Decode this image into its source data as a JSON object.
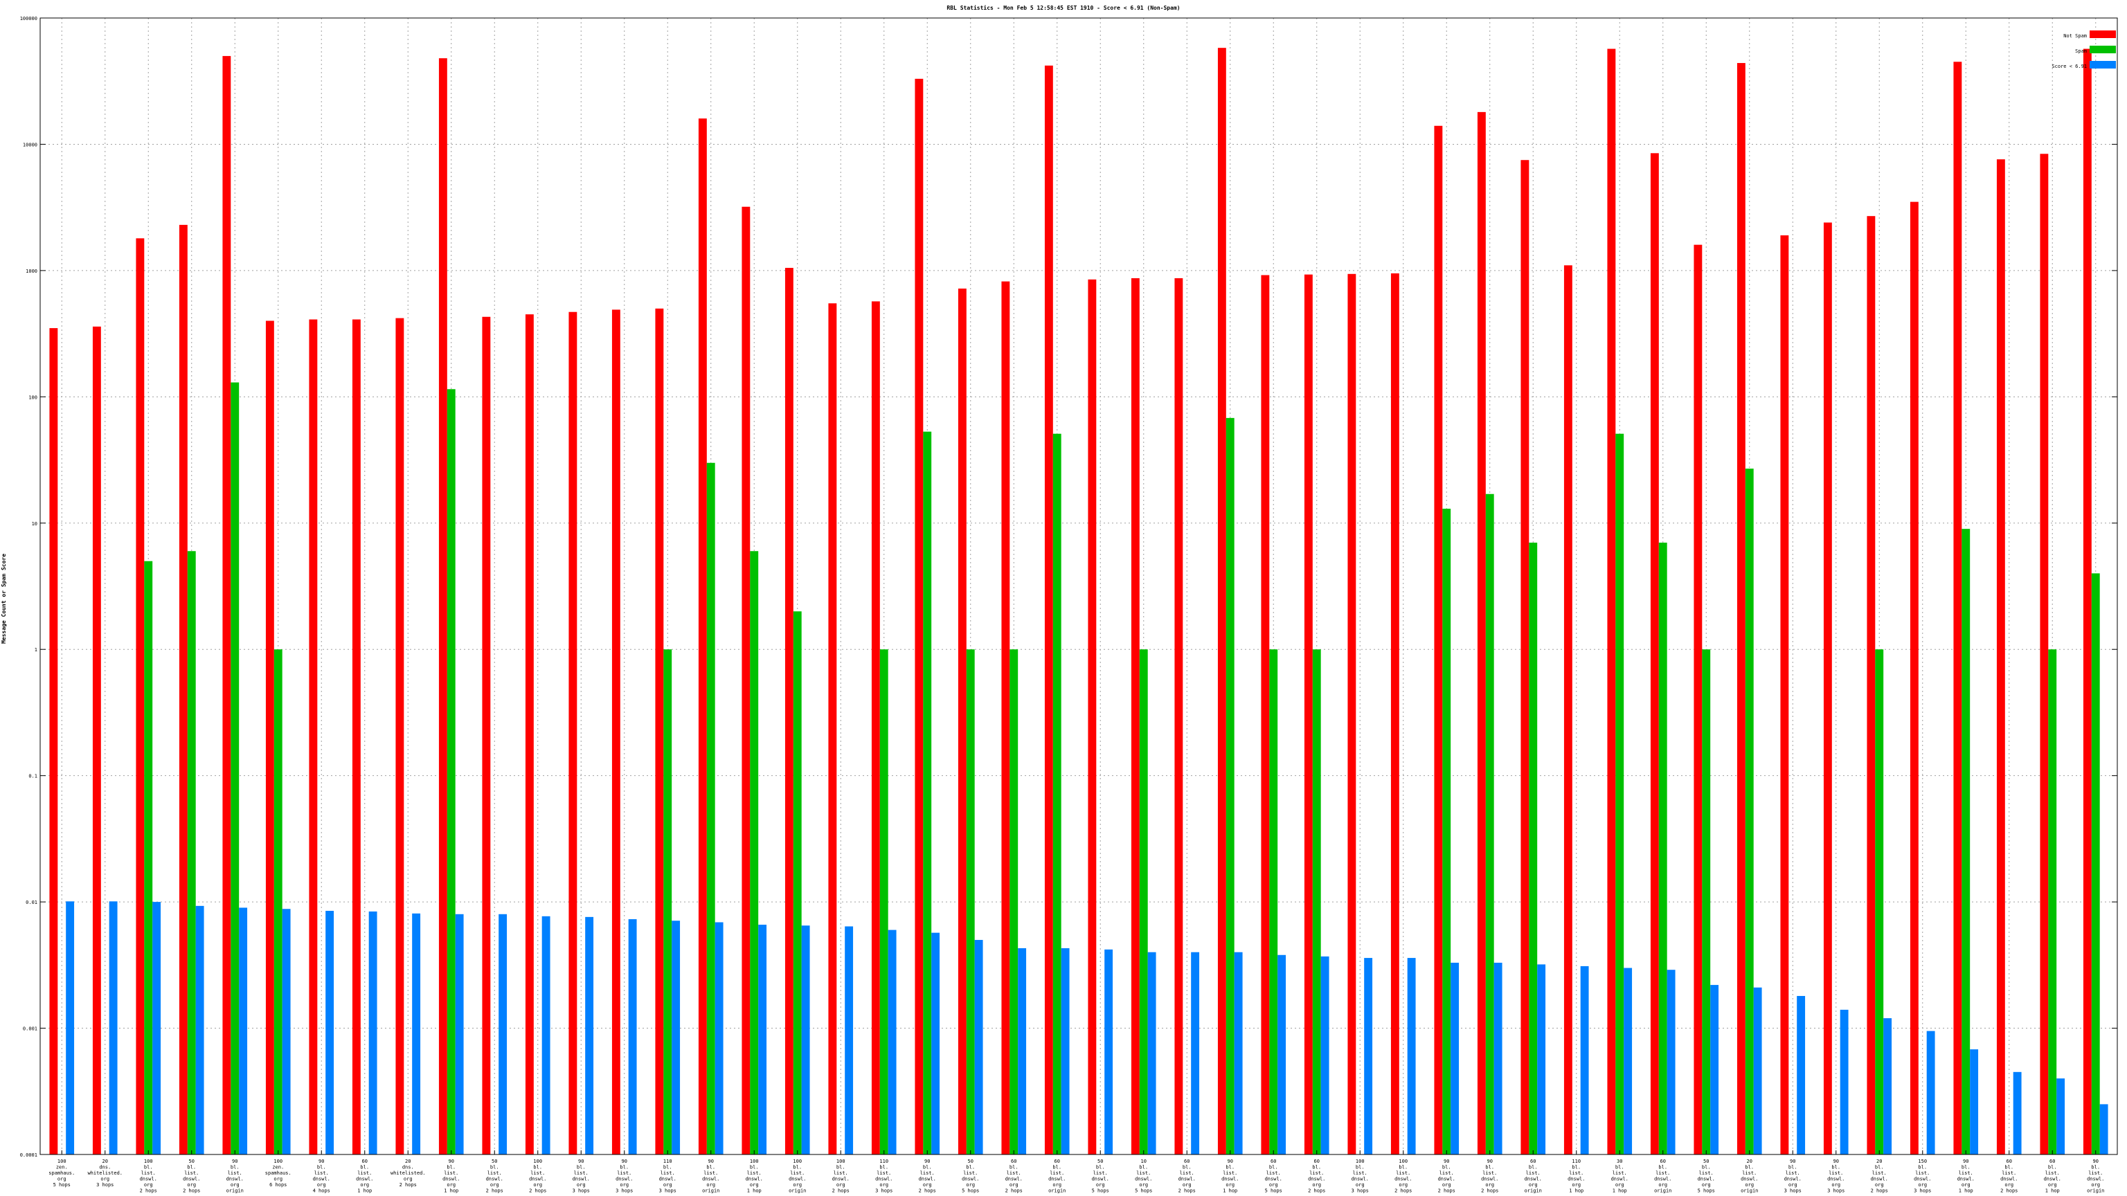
{
  "colors": {
    "not_spam": "#ff0000",
    "spam": "#00c000",
    "score": "#0080ff",
    "grid": "#a0a0a0",
    "axis": "#000000"
  },
  "chart_data": {
    "type": "bar",
    "title": "RBL Statistics - Mon Feb  5 12:58:45 EST 1910 - Score < 6.91 (Non-Spam)",
    "xlabel": "",
    "ylabel": "Message Count or Spam Score",
    "yscale": "log",
    "ylim": [
      0.0001,
      100000
    ],
    "ytick_values": [
      0.0001,
      0.001,
      0.01,
      0.1,
      1,
      10,
      100,
      1000,
      10000,
      100000
    ],
    "ytick_labels": [
      "0.0001",
      "0.001",
      "0.01",
      "0.1",
      "1",
      "10",
      "100",
      "1000",
      "10000",
      "100000"
    ],
    "grid": true,
    "legend_position": "top-right",
    "categories": [
      [
        "100",
        "zen.",
        "spamhaus.",
        "org",
        "5 hops"
      ],
      [
        "20",
        "dns.",
        "whitelisted.",
        "org",
        "3 hops"
      ],
      [
        "100",
        "bl.",
        "list.",
        "dnswl.",
        "org",
        "2 hops"
      ],
      [
        "50",
        "bl.",
        "list.",
        "dnswl.",
        "org",
        "2 hops"
      ],
      [
        "90",
        "bl.",
        "list.",
        "dnswl.",
        "org",
        "origin"
      ],
      [
        "100",
        "zen.",
        "spamhaus.",
        "org",
        "6 hops"
      ],
      [
        "90",
        "bl.",
        "list.",
        "dnswl.",
        "org",
        "4 hops"
      ],
      [
        "60",
        "bl.",
        "list.",
        "dnswl.",
        "org",
        "1 hop"
      ],
      [
        "20",
        "dns.",
        "whitelisted.",
        "org",
        "2 hops"
      ],
      [
        "90",
        "bl.",
        "list.",
        "dnswl.",
        "org",
        "1 hop"
      ],
      [
        "50",
        "bl.",
        "list.",
        "dnswl.",
        "org",
        "2 hops"
      ],
      [
        "100",
        "bl.",
        "list.",
        "dnswl.",
        "org",
        "2 hops"
      ],
      [
        "90",
        "bl.",
        "list.",
        "dnswl.",
        "org",
        "3 hops"
      ],
      [
        "90",
        "bl.",
        "list.",
        "dnswl.",
        "org",
        "3 hops"
      ],
      [
        "110",
        "bl.",
        "list.",
        "dnswl.",
        "org",
        "3 hops"
      ],
      [
        "90",
        "bl.",
        "list.",
        "dnswl.",
        "org",
        "origin"
      ],
      [
        "100",
        "bl.",
        "list.",
        "dnswl.",
        "org",
        "1 hop"
      ],
      [
        "100",
        "bl.",
        "list.",
        "dnswl.",
        "org",
        "origin"
      ],
      [
        "100",
        "bl.",
        "list.",
        "dnswl.",
        "org",
        "2 hops"
      ],
      [
        "110",
        "bl.",
        "list.",
        "dnswl.",
        "org",
        "3 hops"
      ],
      [
        "90",
        "bl.",
        "list.",
        "dnswl.",
        "org",
        "2 hops"
      ],
      [
        "50",
        "bl.",
        "list.",
        "dnswl.",
        "org",
        "5 hops"
      ],
      [
        "60",
        "bl.",
        "list.",
        "dnswl.",
        "org",
        "2 hops"
      ],
      [
        "60",
        "bl.",
        "list.",
        "dnswl.",
        "org",
        "origin"
      ],
      [
        "50",
        "bl.",
        "list.",
        "dnswl.",
        "org",
        "5 hops"
      ],
      [
        "10",
        "bl.",
        "list.",
        "dnswl.",
        "org",
        "5 hops"
      ],
      [
        "60",
        "bl.",
        "list.",
        "dnswl.",
        "org",
        "2 hops"
      ],
      [
        "90",
        "bl.",
        "list.",
        "dnswl.",
        "org",
        "1 hop"
      ],
      [
        "60",
        "bl.",
        "list.",
        "dnswl.",
        "org",
        "5 hops"
      ],
      [
        "60",
        "bl.",
        "list.",
        "dnswl.",
        "org",
        "2 hops"
      ],
      [
        "100",
        "bl.",
        "list.",
        "dnswl.",
        "org",
        "3 hops"
      ],
      [
        "100",
        "bl.",
        "list.",
        "dnswl.",
        "org",
        "2 hops"
      ],
      [
        "90",
        "bl.",
        "list.",
        "dnswl.",
        "org",
        "2 hops"
      ],
      [
        "90",
        "bl.",
        "list.",
        "dnswl.",
        "org",
        "2 hops"
      ],
      [
        "60",
        "bl.",
        "list.",
        "dnswl.",
        "org",
        "origin"
      ],
      [
        "110",
        "bl.",
        "list.",
        "dnswl.",
        "org",
        "1 hop"
      ],
      [
        "30",
        "bl.",
        "list.",
        "dnswl.",
        "org",
        "1 hop"
      ],
      [
        "60",
        "bl.",
        "list.",
        "dnswl.",
        "org",
        "origin"
      ],
      [
        "50",
        "bl.",
        "list.",
        "dnswl.",
        "org",
        "5 hops"
      ],
      [
        "20",
        "bl.",
        "list.",
        "dnswl.",
        "org",
        "origin"
      ],
      [
        "90",
        "bl.",
        "list.",
        "dnswl.",
        "org",
        "3 hops"
      ],
      [
        "90",
        "bl.",
        "list.",
        "dnswl.",
        "org",
        "3 hops"
      ],
      [
        "20",
        "bl.",
        "list.",
        "dnswl.",
        "org",
        "2 hops"
      ],
      [
        "150",
        "bl.",
        "list.",
        "dnswl.",
        "org",
        "3 hops"
      ],
      [
        "90",
        "bl.",
        "list.",
        "dnswl.",
        "org",
        "1 hop"
      ],
      [
        "60",
        "bl.",
        "list.",
        "dnswl.",
        "org",
        "2 hops"
      ],
      [
        "60",
        "bl.",
        "list.",
        "dnswl.",
        "org",
        "1 hop"
      ],
      [
        "90",
        "bl.",
        "list.",
        "dnswl.",
        "org",
        "origin"
      ]
    ],
    "series": [
      {
        "name": "Not Spam",
        "color": "#ff0000",
        "values": [
          350,
          360,
          1800,
          2300,
          50000,
          400,
          410,
          410,
          420,
          48000,
          430,
          450,
          470,
          490,
          500,
          16000,
          3200,
          1050,
          550,
          570,
          33000,
          720,
          820,
          42000,
          850,
          870,
          870,
          58000,
          920,
          930,
          940,
          950,
          14000,
          18000,
          7500,
          1100,
          57000,
          8500,
          1600,
          44000,
          1900,
          2400,
          2700,
          3500,
          45000,
          7600,
          8400,
          57000
        ]
      },
      {
        "name": "Spam",
        "color": "#00c000",
        "values": [
          null,
          null,
          5,
          6,
          130,
          1,
          null,
          null,
          null,
          115,
          null,
          null,
          null,
          null,
          1,
          30,
          6,
          2,
          null,
          1,
          53,
          1,
          1,
          51,
          null,
          1,
          null,
          68,
          1,
          1,
          null,
          null,
          13,
          17,
          7,
          null,
          51,
          7,
          1,
          27,
          null,
          null,
          1,
          null,
          9,
          null,
          1,
          4
        ]
      },
      {
        "name": "Score < 6.91",
        "color": "#0080ff",
        "values": [
          0.0101,
          0.0101,
          0.01,
          0.0093,
          0.009,
          0.0088,
          0.0085,
          0.0084,
          0.0081,
          0.008,
          0.008,
          0.0077,
          0.0076,
          0.0073,
          0.0071,
          0.0069,
          0.0066,
          0.0065,
          0.0064,
          0.006,
          0.0057,
          0.005,
          0.0043,
          0.0043,
          0.0042,
          0.004,
          0.004,
          0.004,
          0.0038,
          0.0037,
          0.0036,
          0.0036,
          0.0033,
          0.0033,
          0.0032,
          0.0031,
          0.003,
          0.0029,
          0.0022,
          0.0021,
          0.0018,
          0.0014,
          0.0012,
          0.00095,
          0.00068,
          0.00045,
          0.0004,
          0.00025
        ]
      }
    ]
  }
}
